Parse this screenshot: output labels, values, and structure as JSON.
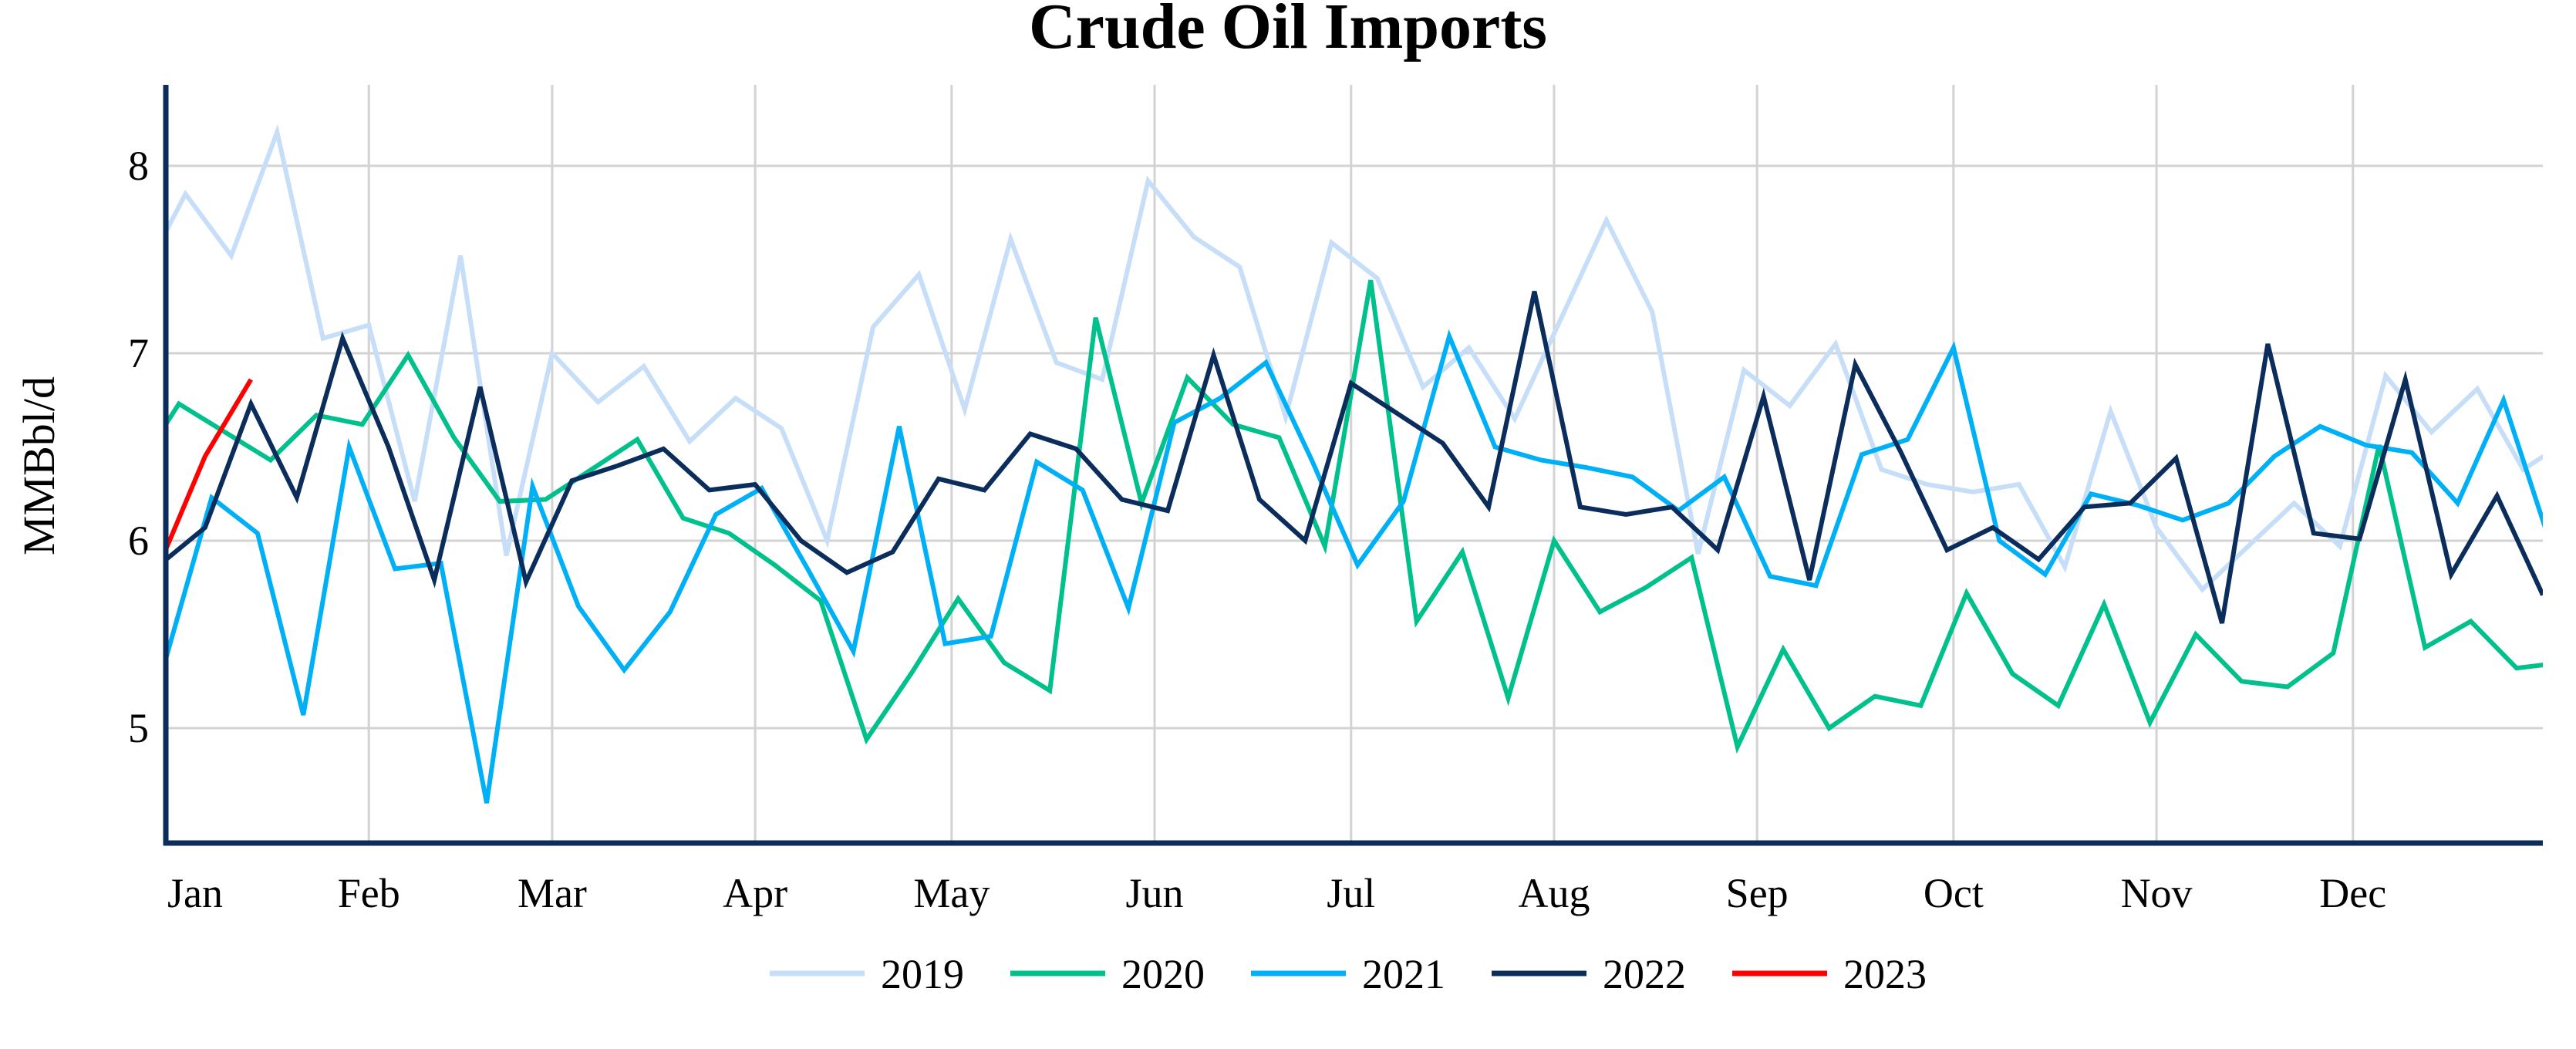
{
  "chart_data": {
    "type": "line",
    "title": "Crude Oil Imports",
    "xlabel": "",
    "ylabel": "MMBbl/d",
    "xlim_days": [
      0,
      363
    ],
    "ylim": [
      4.4,
      8.4
    ],
    "grid": true,
    "legend_position": "bottom-center",
    "y_ticks": [
      5,
      6,
      7,
      8
    ],
    "x_ticks": [
      {
        "day": 0,
        "label": "Jan"
      },
      {
        "day": 31,
        "label": "Feb"
      },
      {
        "day": 59,
        "label": "Mar"
      },
      {
        "day": 90,
        "label": "Apr"
      },
      {
        "day": 120,
        "label": "May"
      },
      {
        "day": 151,
        "label": "Jun"
      },
      {
        "day": 181,
        "label": "Jul"
      },
      {
        "day": 212,
        "label": "Aug"
      },
      {
        "day": 243,
        "label": "Sep"
      },
      {
        "day": 273,
        "label": "Oct"
      },
      {
        "day": 304,
        "label": "Nov"
      },
      {
        "day": 334,
        "label": "Dec"
      }
    ],
    "x_step_days": 7,
    "series": [
      {
        "name": "2019",
        "color": "#c6def7",
        "start_day": -4,
        "values": [
          7.38,
          7.85,
          7.52,
          8.18,
          7.08,
          7.15,
          6.21,
          7.52,
          5.92,
          7.0,
          6.74,
          6.93,
          6.53,
          6.76,
          6.6,
          6.0,
          7.14,
          7.42,
          6.7,
          7.61,
          6.95,
          6.86,
          7.92,
          7.62,
          7.46,
          6.66,
          7.59,
          7.4,
          6.82,
          7.03,
          6.65,
          7.18,
          7.71,
          7.22,
          5.93,
          6.91,
          6.72,
          7.05,
          6.38,
          6.3,
          6.26,
          6.3,
          5.86,
          6.69,
          6.07,
          5.74,
          5.97,
          6.2,
          5.97,
          6.88,
          6.58,
          6.81,
          6.38,
          6.54
        ]
      },
      {
        "name": "2020",
        "color": "#00c08b",
        "start_day": -5,
        "values": [
          6.35,
          6.73,
          6.58,
          6.43,
          6.67,
          6.62,
          6.99,
          6.55,
          6.21,
          6.22,
          6.38,
          6.54,
          6.12,
          6.04,
          5.87,
          5.68,
          4.94,
          5.3,
          5.69,
          5.35,
          5.2,
          7.19,
          6.2,
          6.87,
          6.62,
          6.55,
          5.97,
          7.39,
          5.57,
          5.94,
          5.16,
          6.0,
          5.62,
          5.75,
          5.91,
          4.9,
          5.42,
          5.0,
          5.17,
          5.12,
          5.72,
          5.29,
          5.12,
          5.66,
          5.03,
          5.5,
          5.25,
          5.22,
          5.4,
          6.51,
          5.43,
          5.57,
          5.32,
          5.35
        ]
      },
      {
        "name": "2021",
        "color": "#00b0f6",
        "start_day": 0,
        "values": [
          5.37,
          6.23,
          6.04,
          5.07,
          6.5,
          5.85,
          5.88,
          4.6,
          6.29,
          5.65,
          5.31,
          5.62,
          6.14,
          6.28,
          5.85,
          5.41,
          6.61,
          5.45,
          5.49,
          6.42,
          6.27,
          5.64,
          6.63,
          6.76,
          6.95,
          6.43,
          5.87,
          6.21,
          7.09,
          6.5,
          6.43,
          6.39,
          6.34,
          6.16,
          6.34,
          5.81,
          5.76,
          6.46,
          6.54,
          7.03,
          6.0,
          5.82,
          6.25,
          6.19,
          6.11,
          6.2,
          6.45,
          6.61,
          6.51,
          6.47,
          6.2,
          6.75,
          6.0
        ]
      },
      {
        "name": "2022",
        "color": "#0b2d5b",
        "start_day": -1,
        "values": [
          5.87,
          6.07,
          6.73,
          6.23,
          7.08,
          6.5,
          5.79,
          6.82,
          5.78,
          6.32,
          6.4,
          6.49,
          6.27,
          6.3,
          6.0,
          5.83,
          5.94,
          6.33,
          6.27,
          6.57,
          6.49,
          6.22,
          6.16,
          6.99,
          6.22,
          6.0,
          6.84,
          6.68,
          6.52,
          6.18,
          7.33,
          6.18,
          6.14,
          6.18,
          5.95,
          6.77,
          5.79,
          6.94,
          6.47,
          5.95,
          6.07,
          5.9,
          6.18,
          6.2,
          6.44,
          5.56,
          7.05,
          6.04,
          6.01,
          6.86,
          5.82,
          6.24,
          5.71
        ]
      },
      {
        "name": "2023",
        "color": "#ff0000",
        "start_day": -1,
        "values": [
          5.87,
          6.45,
          6.86
        ]
      }
    ]
  }
}
